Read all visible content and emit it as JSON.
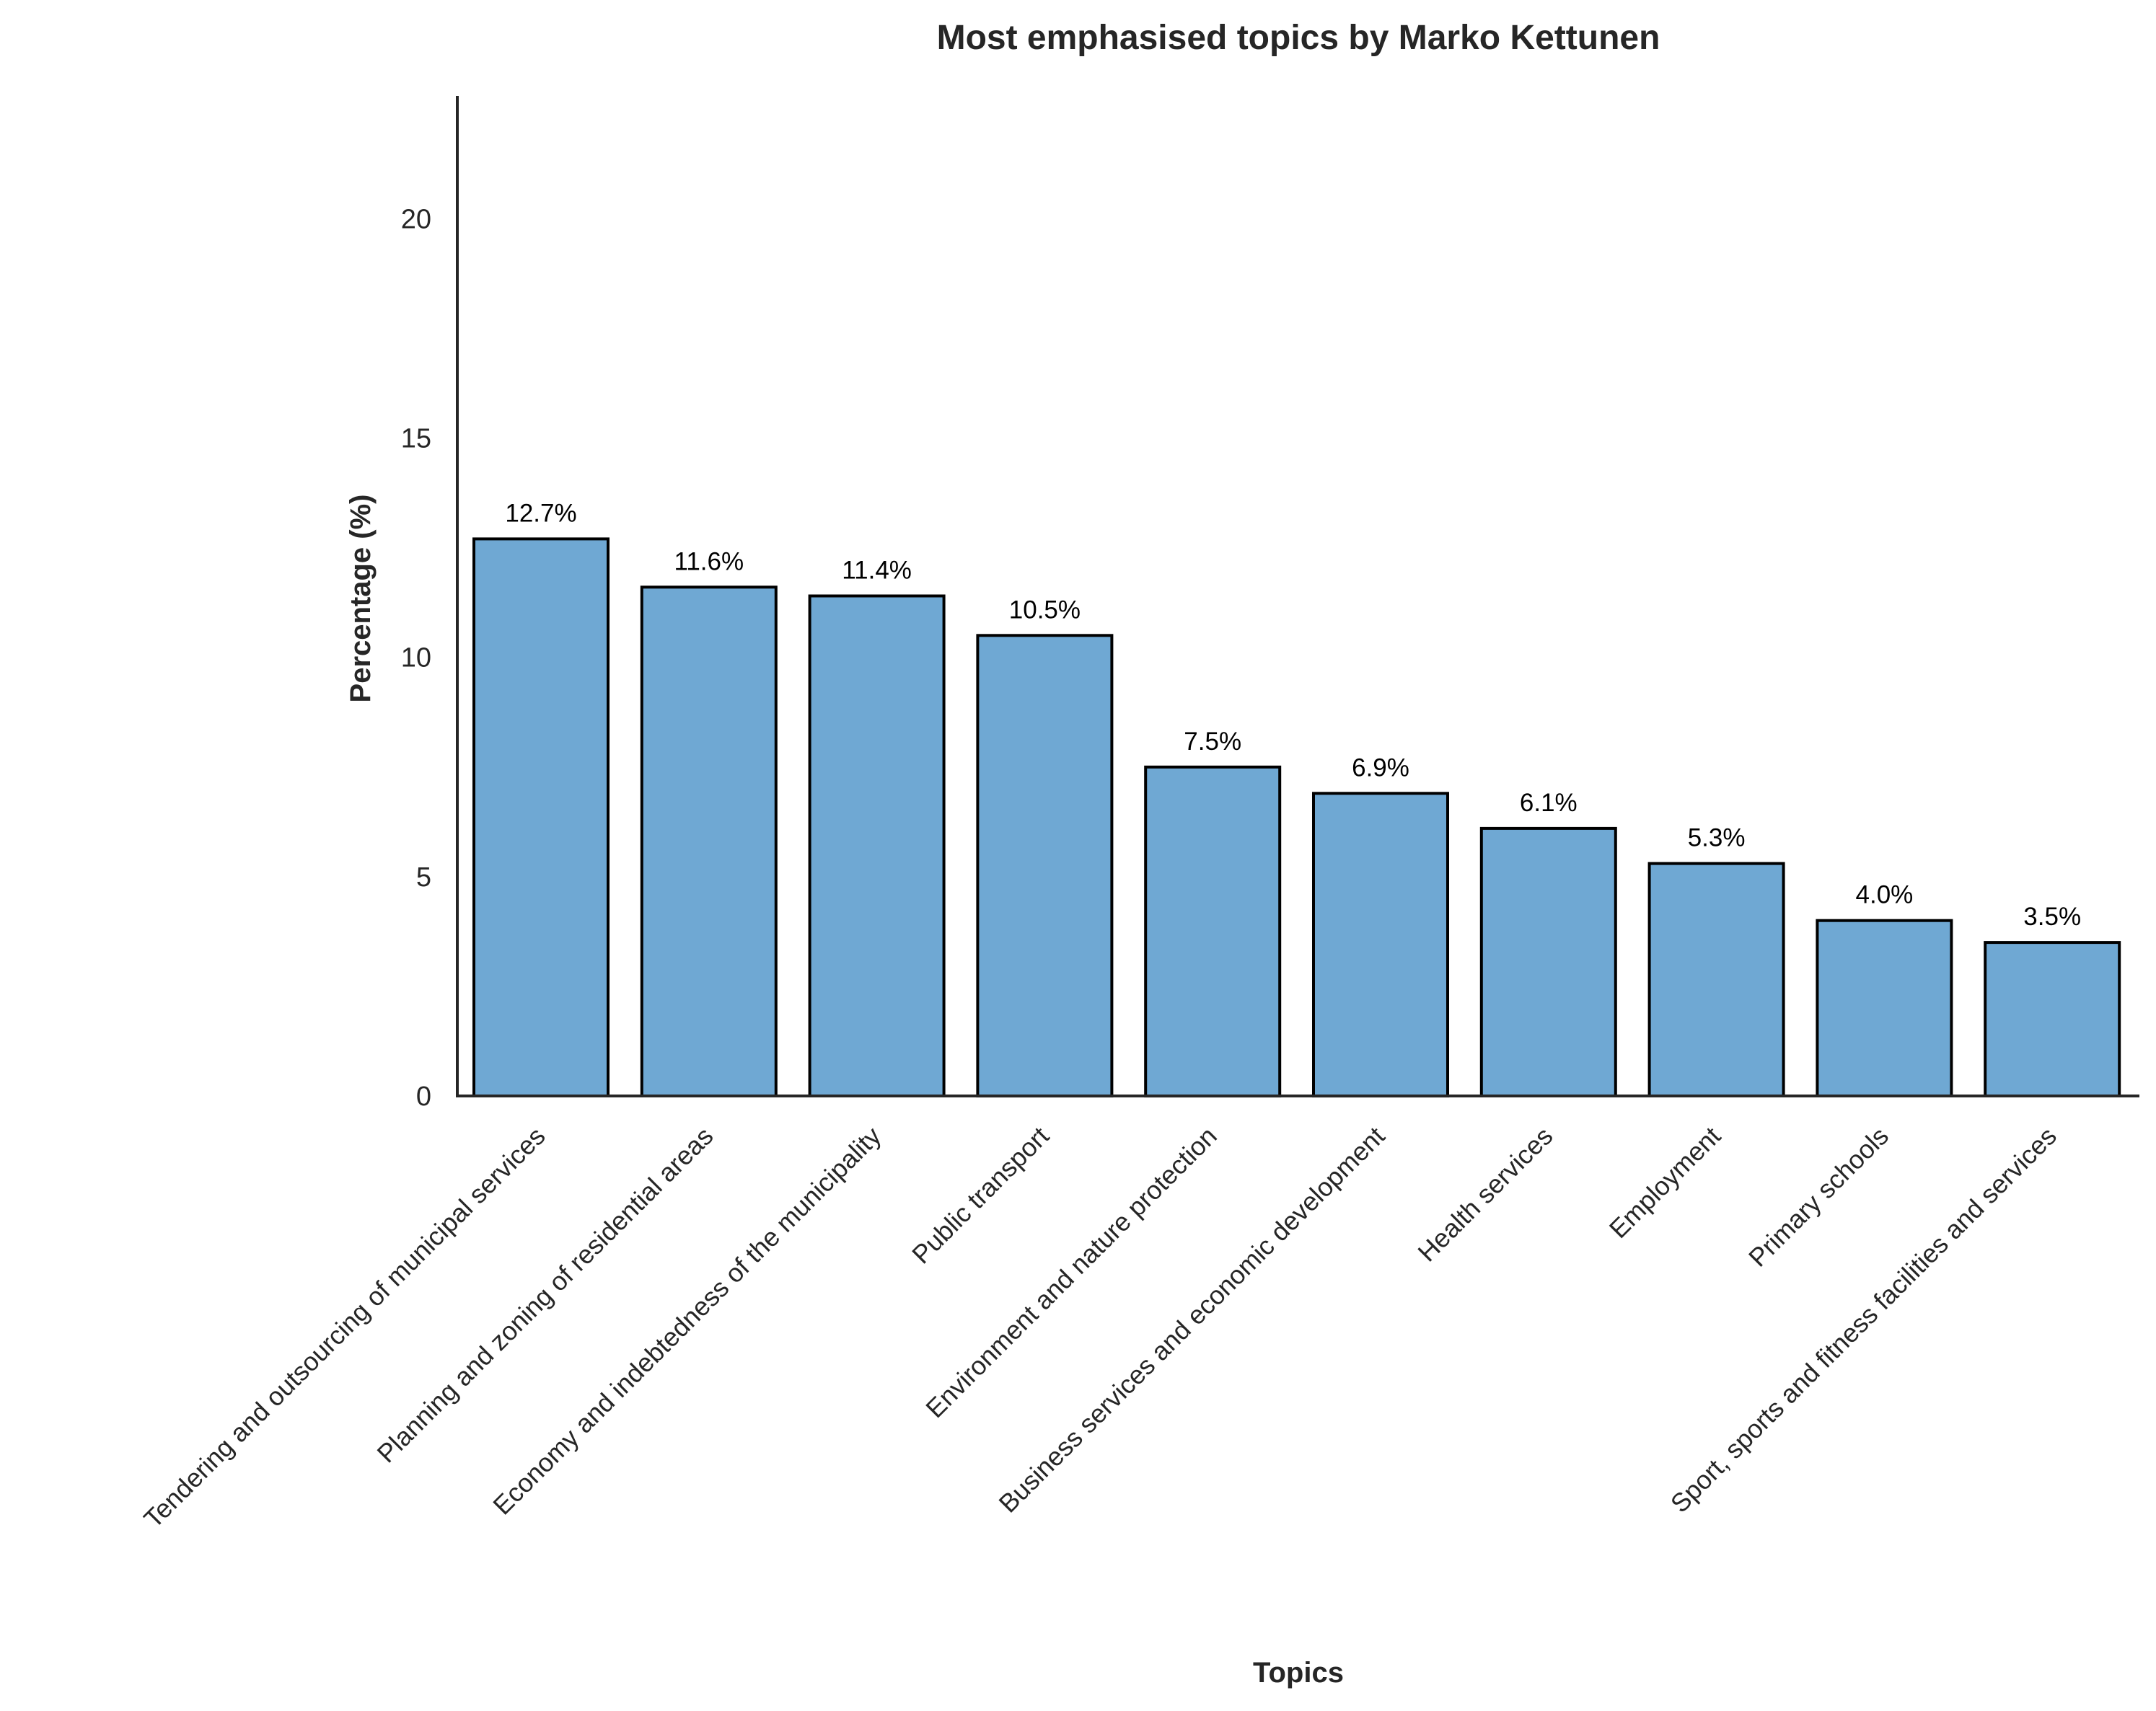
{
  "chart_data": {
    "type": "bar",
    "title": "Most emphasised topics by Marko Kettunen",
    "xlabel": "Topics",
    "ylabel": "Percentage (%)",
    "ylim": [
      0,
      22.8
    ],
    "yticks": [
      0,
      5,
      10,
      15,
      20
    ],
    "categories": [
      "Tendering and outsourcing of municipal services",
      "Planning and zoning of residential areas",
      "Economy and indebtedness of the municipality",
      "Public transport",
      "Environment and nature protection",
      "Business services and economic development",
      "Health services",
      "Employment",
      "Primary schools",
      "Sport, sports and fitness facilities and services"
    ],
    "values": [
      12.7,
      11.6,
      11.4,
      10.5,
      7.5,
      6.9,
      6.1,
      5.3,
      4.0,
      3.5
    ],
    "data_labels": [
      "12.7%",
      "11.6%",
      "11.4%",
      "10.5%",
      "7.5%",
      "6.9%",
      "6.1%",
      "5.3%",
      "4.0%",
      "3.5%"
    ],
    "grid": false,
    "bar_color": "#6fa8d3",
    "edge_color": "#000000"
  }
}
